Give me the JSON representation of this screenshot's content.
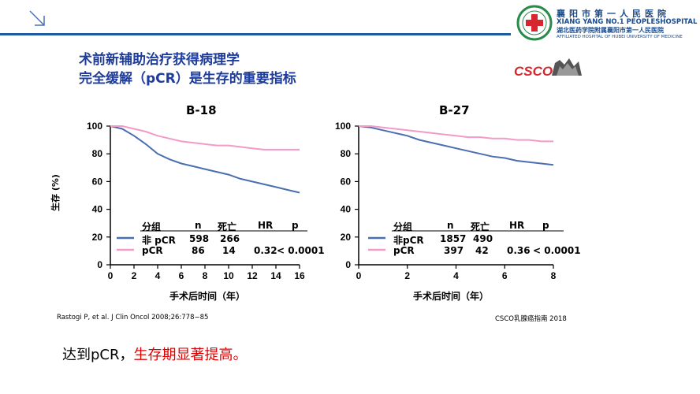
{
  "slide": {
    "title_line1": "术前新辅助治疗获得病理学",
    "title_line2": "完全缓解（pCR）是生存的重要指标",
    "csco_logo": "CSCO",
    "bottom_text_black": "达到pCR，",
    "bottom_text_red": "生存期显著提高。",
    "reference": "Rastogi P, et al. J Clin Oncol 2008;26:778−85",
    "guideline": "CSCO乳腺癌指南    2018"
  },
  "hospital": {
    "name_cn": "襄阳市第一人民医院",
    "name_en": "XIANG YANG NO.1 PEOPLESHOSPITAL",
    "name_cn2": "湖北医药学院附属襄阳市第一人民医院",
    "name_en2": "AFFILIATED HOSPITAL OF HUBEI UNIVERSITY OF MEDICINE"
  },
  "colors": {
    "non_pcr": "#4a6fb0",
    "pcr": "#f49ac8",
    "title": "#1e3c9c",
    "accent": "#e00000"
  },
  "chart_data": [
    {
      "type": "line",
      "title": "B-18",
      "ylabel": "生存 (%)",
      "xlabel": "手术后时间（年）",
      "xlim": [
        0,
        16
      ],
      "ylim": [
        0,
        100
      ],
      "xticks": [
        "0",
        "2",
        "4",
        "6",
        "8",
        "10",
        "12",
        "14",
        "16"
      ],
      "yticks": [
        "0",
        "20",
        "40",
        "60",
        "80",
        "100"
      ],
      "legend_header": {
        "group": "分组",
        "n": "n",
        "deaths": "死亡",
        "hr": "HR",
        "p": "p"
      },
      "series": [
        {
          "name": "非 pCR",
          "n": "598",
          "deaths": "266",
          "x": [
            0,
            1,
            2,
            3,
            4,
            5,
            6,
            7,
            8,
            9,
            10,
            11,
            12,
            13,
            14,
            15,
            16
          ],
          "y": [
            100,
            98,
            93,
            87,
            80,
            76,
            73,
            71,
            69,
            67,
            65,
            62,
            60,
            58,
            56,
            54,
            52
          ]
        },
        {
          "name": "pCR",
          "n": "86",
          "deaths": "14",
          "hr": "0.32",
          "p": "< 0.0001",
          "x": [
            0,
            1,
            2,
            3,
            4,
            5,
            6,
            7,
            8,
            9,
            10,
            11,
            12,
            13,
            14,
            15,
            16
          ],
          "y": [
            100,
            100,
            98,
            96,
            93,
            91,
            89,
            88,
            87,
            86,
            86,
            85,
            84,
            83,
            83,
            83,
            83
          ]
        }
      ]
    },
    {
      "type": "line",
      "title": "B-27",
      "xlabel": "手术后时间（年）",
      "xlim": [
        0,
        8
      ],
      "ylim": [
        0,
        100
      ],
      "xticks": [
        "0",
        "2",
        "4",
        "6",
        "8"
      ],
      "yticks": [
        "0",
        "20",
        "40",
        "60",
        "80",
        "100"
      ],
      "legend_header": {
        "group": "分组",
        "n": "n",
        "deaths": "死亡",
        "hr": "HR",
        "p": "p"
      },
      "series": [
        {
          "name": "非pCR",
          "n": "1857",
          "deaths": "490",
          "x": [
            0,
            0.5,
            1,
            1.5,
            2,
            2.5,
            3,
            3.5,
            4,
            4.5,
            5,
            5.5,
            6,
            6.5,
            7,
            7.5,
            8
          ],
          "y": [
            100,
            99,
            97,
            95,
            93,
            90,
            88,
            86,
            84,
            82,
            80,
            78,
            77,
            75,
            74,
            73,
            72
          ]
        },
        {
          "name": "pCR",
          "n": "397",
          "deaths": "42",
          "hr": "0.36",
          "p": "< 0.0001",
          "x": [
            0,
            0.5,
            1,
            1.5,
            2,
            2.5,
            3,
            3.5,
            4,
            4.5,
            5,
            5.5,
            6,
            6.5,
            7,
            7.5,
            8
          ],
          "y": [
            100,
            100,
            99,
            98,
            97,
            96,
            95,
            94,
            93,
            92,
            92,
            91,
            91,
            90,
            90,
            89,
            89
          ]
        }
      ]
    }
  ]
}
